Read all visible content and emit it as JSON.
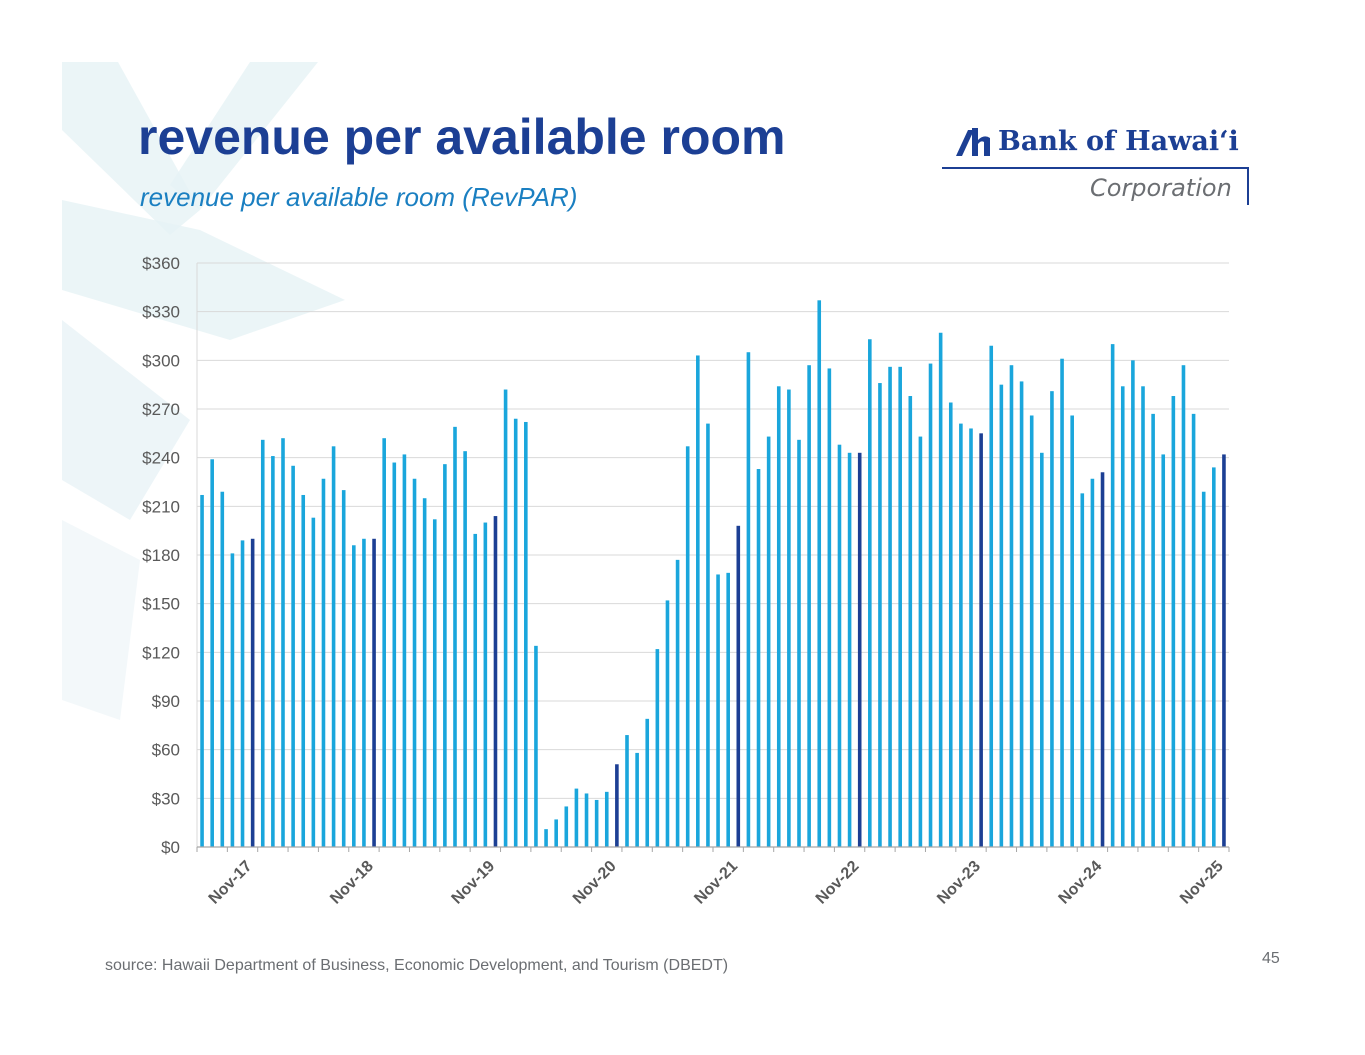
{
  "header": {
    "title": "revenue per available room",
    "subtitle": "revenue per available room (RevPAR)"
  },
  "logo": {
    "main_text": "Bank of Hawai‘i",
    "sub_text": "Corporation"
  },
  "footer": {
    "source": "source: Hawaii Department of Business, Economic Development, and Tourism (DBEDT)",
    "page_number": "45"
  },
  "colors": {
    "title": "#1c3f94",
    "subtitle": "#1a7fc1",
    "bar": "#1aa6dc",
    "bar_highlight": "#1c3f94",
    "grid": "#d9d9d9",
    "axis_text": "#595959"
  },
  "chart_data": {
    "type": "bar",
    "title": "revenue per available room (RevPAR)",
    "xlabel": "",
    "ylabel": "",
    "ylim": [
      0,
      360
    ],
    "yticks": [
      0,
      30,
      60,
      90,
      120,
      150,
      180,
      210,
      240,
      270,
      300,
      330,
      360
    ],
    "ytick_labels": [
      "$0",
      "$30",
      "$60",
      "$90",
      "$120",
      "$150",
      "$180",
      "$210",
      "$240",
      "$270",
      "$300",
      "$330",
      "$360"
    ],
    "x_tick_labels": [
      "Nov-17",
      "Nov-18",
      "Nov-19",
      "Nov-20",
      "Nov-21",
      "Nov-22",
      "Nov-23",
      "Nov-24",
      "Nov-25"
    ],
    "x_tick_indices": [
      5,
      17,
      29,
      41,
      53,
      65,
      77,
      89,
      101
    ],
    "highlight_rule": "November months shown in dark blue",
    "categories": [
      "Jun-17",
      "Jul-17",
      "Aug-17",
      "Sep-17",
      "Oct-17",
      "Nov-17",
      "Dec-17",
      "Jan-18",
      "Feb-18",
      "Mar-18",
      "Apr-18",
      "May-18",
      "Jun-18",
      "Jul-18",
      "Aug-18",
      "Sep-18",
      "Oct-18",
      "Nov-18",
      "Dec-18",
      "Jan-19",
      "Feb-19",
      "Mar-19",
      "Apr-19",
      "May-19",
      "Jun-19",
      "Jul-19",
      "Aug-19",
      "Sep-19",
      "Oct-19",
      "Nov-19",
      "Dec-19",
      "Jan-20",
      "Feb-20",
      "Mar-20",
      "Apr-20",
      "May-20",
      "Jun-20",
      "Jul-20",
      "Aug-20",
      "Sep-20",
      "Oct-20",
      "Nov-20",
      "Dec-20",
      "Jan-21",
      "Feb-21",
      "Mar-21",
      "Apr-21",
      "May-21",
      "Jun-21",
      "Jul-21",
      "Aug-21",
      "Sep-21",
      "Oct-21",
      "Nov-21",
      "Dec-21",
      "Jan-22",
      "Feb-22",
      "Mar-22",
      "Apr-22",
      "May-22",
      "Jun-22",
      "Jul-22",
      "Aug-22",
      "Sep-22",
      "Oct-22",
      "Nov-22",
      "Dec-22",
      "Jan-23",
      "Feb-23",
      "Mar-23",
      "Apr-23",
      "May-23",
      "Jun-23",
      "Jul-23",
      "Aug-23",
      "Sep-23",
      "Oct-23",
      "Nov-23",
      "Dec-23",
      "Jan-24",
      "Feb-24",
      "Mar-24",
      "Apr-24",
      "May-24",
      "Jun-24",
      "Jul-24",
      "Aug-24",
      "Sep-24",
      "Oct-24",
      "Nov-24",
      "Dec-24",
      "Jan-25",
      "Feb-25",
      "Mar-25",
      "Apr-25",
      "May-25",
      "Jun-25",
      "Jul-25",
      "Aug-25",
      "Sep-25",
      "Oct-25",
      "Nov-25"
    ],
    "values": [
      217,
      239,
      219,
      181,
      189,
      190,
      251,
      241,
      252,
      235,
      217,
      203,
      227,
      247,
      220,
      186,
      190,
      190,
      252,
      237,
      242,
      227,
      215,
      202,
      236,
      259,
      244,
      193,
      200,
      204,
      282,
      264,
      262,
      124,
      11,
      17,
      25,
      36,
      33,
      29,
      34,
      51,
      69,
      58,
      79,
      122,
      152,
      177,
      247,
      303,
      261,
      168,
      169,
      198,
      305,
      233,
      253,
      284,
      282,
      251,
      297,
      337,
      295,
      248,
      243,
      243,
      313,
      286,
      296,
      296,
      278,
      253,
      298,
      317,
      274,
      261,
      258,
      255,
      309,
      285,
      297,
      287,
      266,
      243,
      281,
      301,
      266,
      218,
      227,
      231,
      310,
      284,
      300,
      284,
      267,
      242,
      278,
      297,
      267,
      219,
      234,
      242
    ]
  }
}
